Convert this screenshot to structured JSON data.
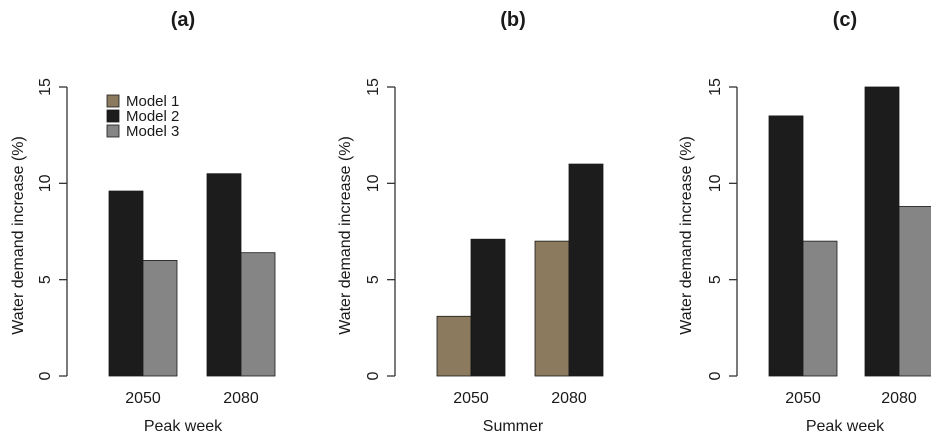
{
  "colors": {
    "Model 1": "#8b7a5e",
    "Model 2": "#1c1c1c",
    "Model 3": "#858585"
  },
  "legend": {
    "entries": [
      "Model 1",
      "Model 2",
      "Model 3"
    ],
    "placement": "top-left of panel (a)"
  },
  "chart_data": [
    {
      "type": "bar",
      "title": "(a)",
      "xlabel": "Peak week",
      "ylabel": "Water demand increase (%)",
      "categories": [
        "2050",
        "2080"
      ],
      "ylim": [
        0,
        15
      ],
      "yticks": [
        0,
        5,
        10,
        15
      ],
      "grid": false,
      "series": [
        {
          "name": "Model 2",
          "values": [
            9.6,
            10.5
          ]
        },
        {
          "name": "Model 3",
          "values": [
            6.0,
            6.4
          ]
        }
      ]
    },
    {
      "type": "bar",
      "title": "(b)",
      "xlabel": "Summer",
      "ylabel": "Water demand increase (%)",
      "categories": [
        "2050",
        "2080"
      ],
      "ylim": [
        0,
        15
      ],
      "yticks": [
        0,
        5,
        10,
        15
      ],
      "grid": false,
      "series": [
        {
          "name": "Model 1",
          "values": [
            3.1,
            7.0
          ]
        },
        {
          "name": "Model 2",
          "values": [
            7.1,
            11.0
          ]
        }
      ]
    },
    {
      "type": "bar",
      "title": "(c)",
      "xlabel": "Peak week",
      "ylabel": "Water demand increase (%)",
      "categories": [
        "2050",
        "2080"
      ],
      "ylim": [
        0,
        15
      ],
      "yticks": [
        0,
        5,
        10,
        15
      ],
      "grid": false,
      "series": [
        {
          "name": "Model 2",
          "values": [
            13.5,
            15.0
          ]
        },
        {
          "name": "Model 3",
          "values": [
            7.0,
            8.8
          ]
        }
      ]
    }
  ]
}
